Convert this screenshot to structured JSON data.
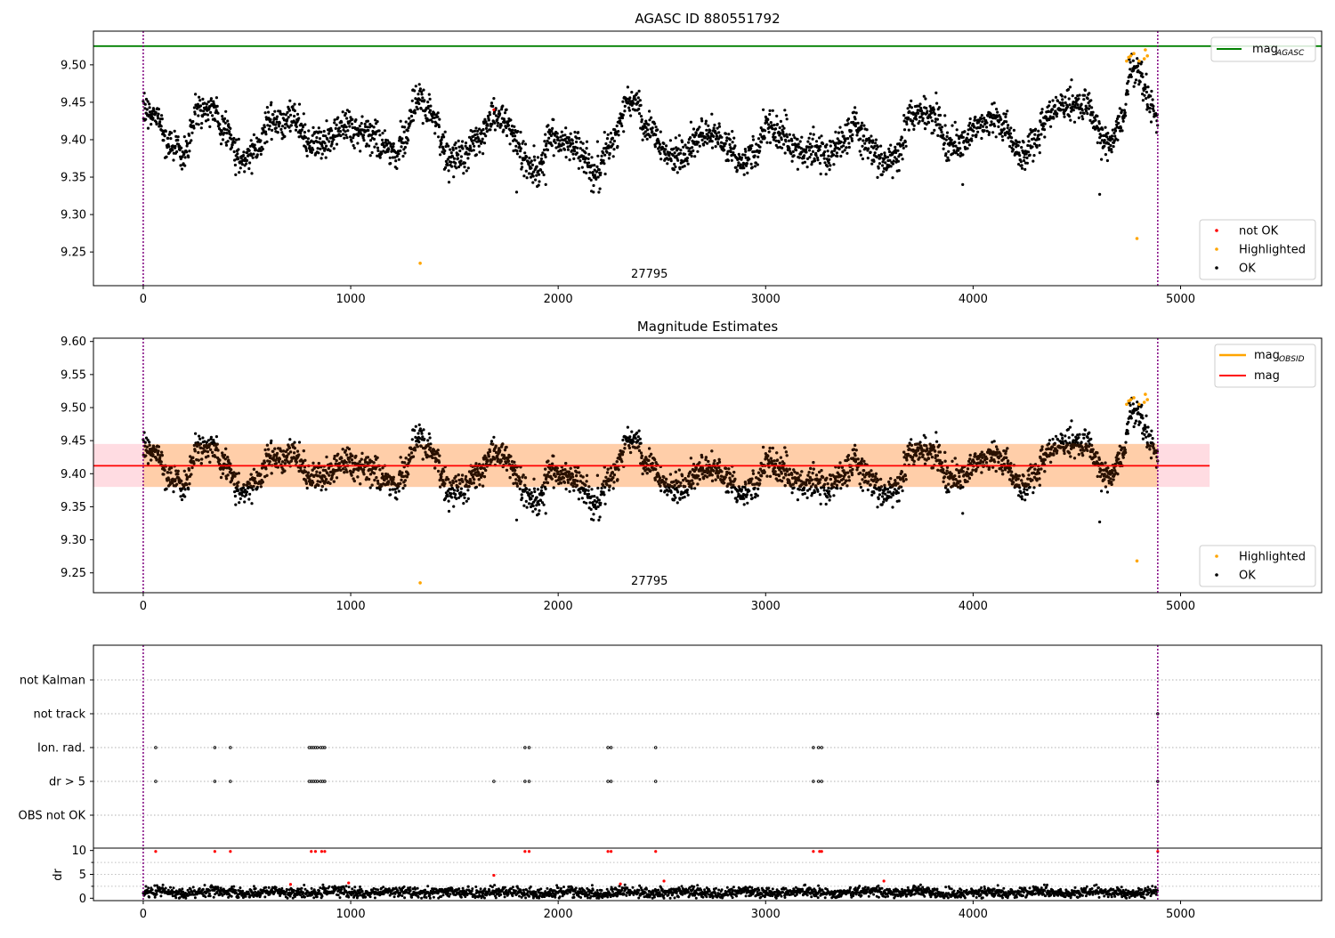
{
  "figure": {
    "panels": [
      "agasc-panel",
      "mag-panel",
      "flags-panel"
    ]
  },
  "chart_data": [
    {
      "type": "scatter",
      "title": "AGASC ID 880551792",
      "annotation": "27795",
      "xlim": [
        -240,
        5680
      ],
      "ylim": [
        9.205,
        9.545
      ],
      "x_ticks": [
        0,
        1000,
        2000,
        3000,
        4000,
        5000
      ],
      "y_ticks": [
        9.25,
        9.3,
        9.35,
        9.4,
        9.45,
        9.5
      ],
      "y_tick_labels": [
        "9.25",
        "9.30",
        "9.35",
        "9.40",
        "9.45",
        "9.50"
      ],
      "vlines": [
        0,
        4890
      ],
      "hline": {
        "name": "mag_AGASC",
        "value": 9.525,
        "color": "#008000"
      },
      "legend_top": [
        {
          "label": "mag",
          "sub": "AGASC",
          "color": "#008000"
        }
      ],
      "legend_bottom": [
        {
          "label": "not OK",
          "color": "#ff0000"
        },
        {
          "label": "Highlighted",
          "color": "#ffa500"
        },
        {
          "label": "OK",
          "color": "#000000"
        }
      ],
      "legend_positions": {
        "top": "upper-right",
        "bottom": "lower-right"
      },
      "series": [
        {
          "name": "OK",
          "color": "#000000",
          "description": "~4900 points, magnitude 9.33–9.50 oscillating around 9.41"
        },
        {
          "name": "Highlighted",
          "color": "#ffa500",
          "points": [
            [
              1335,
              9.235
            ],
            [
              4790,
              9.268
            ],
            [
              4740,
              9.505
            ],
            [
              4750,
              9.51
            ],
            [
              4760,
              9.512
            ],
            [
              4775,
              9.515
            ],
            [
              4800,
              9.505
            ],
            [
              4830,
              9.52
            ],
            [
              4840,
              9.512
            ],
            [
              4825,
              9.508
            ]
          ]
        },
        {
          "name": "not OK",
          "color": "#ff0000",
          "points": [
            [
              1690,
              9.44
            ]
          ]
        }
      ]
    },
    {
      "type": "scatter",
      "title": "Magnitude Estimates",
      "annotation": "27795",
      "xlim": [
        -240,
        5680
      ],
      "ylim": [
        9.22,
        9.605
      ],
      "x_ticks": [
        0,
        1000,
        2000,
        3000,
        4000,
        5000
      ],
      "y_ticks": [
        9.25,
        9.3,
        9.35,
        9.4,
        9.45,
        9.5,
        9.55,
        9.6
      ],
      "y_tick_labels": [
        "9.25",
        "9.30",
        "9.35",
        "9.40",
        "9.45",
        "9.50",
        "9.55",
        "9.60"
      ],
      "vlines": [
        0,
        4890
      ],
      "mag": {
        "name": "mag",
        "value": 9.412,
        "band": [
          9.38,
          9.445
        ],
        "xrange": [
          -240,
          5140
        ],
        "color": "#ff0000"
      },
      "mag_obsid": {
        "name": "mag_OBSID",
        "value": 9.412,
        "band": [
          9.38,
          9.445
        ],
        "xrange": [
          0,
          4890
        ],
        "color": "#ffa500"
      },
      "legend_top": [
        {
          "label": "mag",
          "sub": "OBSID",
          "color": "#ffa500"
        },
        {
          "label": "mag",
          "sub": "",
          "color": "#ff0000"
        }
      ],
      "legend_bottom": [
        {
          "label": "Highlighted",
          "color": "#ffa500"
        },
        {
          "label": "OK",
          "color": "#000000"
        }
      ],
      "legend_positions": {
        "top": "upper-right",
        "bottom": "lower-right"
      }
    },
    {
      "type": "scatter",
      "xlim": [
        -240,
        5680
      ],
      "x_ticks": [
        0,
        1000,
        2000,
        3000,
        4000,
        5000
      ],
      "flag_rows": [
        "not Kalman",
        "not track",
        "Ion. rad.",
        "dr > 5",
        "OBS not OK"
      ],
      "dr_ylabel": "dr",
      "dr_ylim": [
        -0.5,
        10.5
      ],
      "dr_ticks": [
        0,
        5,
        10
      ],
      "dr_tick_labels": [
        "0",
        "5",
        "10"
      ],
      "vlines": [
        0,
        4890
      ],
      "flag_events": {
        "Ion. rad.": [
          60,
          345,
          420,
          800,
          810,
          820,
          830,
          840,
          855,
          865,
          875,
          1840,
          1860,
          2240,
          2255,
          2470,
          3230,
          3255,
          3270
        ],
        "dr > 5": [
          60,
          345,
          420,
          800,
          810,
          820,
          830,
          840,
          855,
          865,
          875,
          1690,
          1840,
          1860,
          2240,
          2255,
          2470,
          3230,
          3255,
          3270,
          4890
        ],
        "not track": [
          4890
        ]
      },
      "dr_outliers": [
        [
          60,
          9.8
        ],
        [
          345,
          9.8
        ],
        [
          420,
          9.8
        ],
        [
          810,
          9.8
        ],
        [
          830,
          9.8
        ],
        [
          860,
          9.8
        ],
        [
          875,
          9.8
        ],
        [
          1690,
          4.8
        ],
        [
          1840,
          9.8
        ],
        [
          1860,
          9.8
        ],
        [
          2240,
          9.8
        ],
        [
          2255,
          9.8
        ],
        [
          2300,
          3.0
        ],
        [
          2470,
          9.8
        ],
        [
          2510,
          3.6
        ],
        [
          3230,
          9.8
        ],
        [
          3260,
          9.8
        ],
        [
          3270,
          9.8
        ],
        [
          3570,
          3.6
        ],
        [
          710,
          2.9
        ],
        [
          990,
          3.2
        ],
        [
          4890,
          9.8
        ]
      ]
    }
  ]
}
